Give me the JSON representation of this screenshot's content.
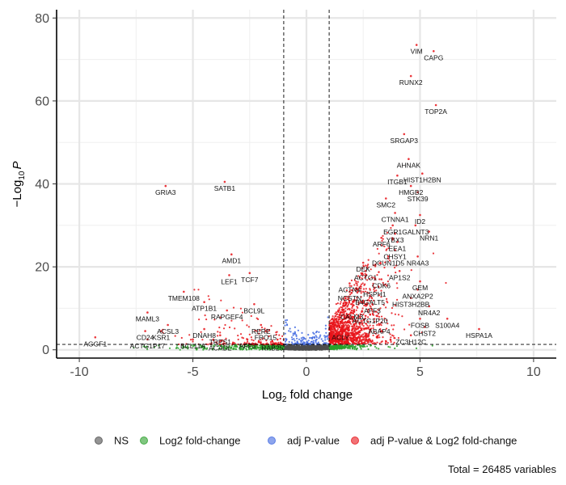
{
  "chart_data": {
    "type": "scatter",
    "xlabel_main": "Log",
    "xlabel_sub": "2",
    "xlabel_rest": " fold change",
    "ylabel_main": "−Log",
    "ylabel_sub": "10",
    "ylabel_var": "P",
    "xlim": [
      -11,
      11
    ],
    "ylim": [
      -2,
      82
    ],
    "x_ticks": [
      -10,
      -5,
      0,
      5,
      10
    ],
    "x_tick_labels": [
      "-10",
      "-5",
      "0",
      "5",
      "10"
    ],
    "y_ticks": [
      0,
      20,
      40,
      60,
      80
    ],
    "y_tick_labels": [
      "0",
      "20",
      "40",
      "60",
      "80"
    ],
    "grid": true,
    "fc_cutoff": 1,
    "p_cutoff": 1.3,
    "legend_position": "bottom",
    "colors": {
      "NS": "#4d4d4d",
      "fc": "#2ca02c",
      "p": "#4169e1",
      "both": "#e8141a"
    },
    "legend": [
      {
        "key": "NS",
        "label": "NS"
      },
      {
        "key": "fc",
        "label": "Log2 fold-change"
      },
      {
        "key": "p",
        "label": "adj P-value"
      },
      {
        "key": "both",
        "label": "adj P-value & Log2 fold-change"
      }
    ],
    "caption": "Total = 26485 variables",
    "labeled_points": [
      {
        "gene": "VIM",
        "x": 4.85,
        "y": 73.5
      },
      {
        "gene": "CAPG",
        "x": 5.6,
        "y": 72.0
      },
      {
        "gene": "RUNX2",
        "x": 4.6,
        "y": 66.0
      },
      {
        "gene": "TOP2A",
        "x": 5.7,
        "y": 59.0
      },
      {
        "gene": "SRGAP3",
        "x": 4.3,
        "y": 52.0
      },
      {
        "gene": "AHNAK",
        "x": 4.5,
        "y": 46.0
      },
      {
        "gene": "HIST1H2BN",
        "x": 5.1,
        "y": 42.5
      },
      {
        "gene": "ITGB1",
        "x": 4.0,
        "y": 42.0
      },
      {
        "gene": "HMGB2",
        "x": 4.6,
        "y": 39.5
      },
      {
        "gene": "STK39",
        "x": 4.9,
        "y": 38.0
      },
      {
        "gene": "SMC2",
        "x": 3.5,
        "y": 36.5
      },
      {
        "gene": "CTNNA1",
        "x": 3.9,
        "y": 33.0
      },
      {
        "gene": "ID2",
        "x": 5.0,
        "y": 32.5
      },
      {
        "gene": "EGR1",
        "x": 3.8,
        "y": 30.0
      },
      {
        "gene": "GALNT3",
        "x": 4.8,
        "y": 30.0
      },
      {
        "gene": "NRN1",
        "x": 5.4,
        "y": 28.5
      },
      {
        "gene": "YBX3",
        "x": 3.9,
        "y": 28.0
      },
      {
        "gene": "ARF6",
        "x": 3.3,
        "y": 27.0
      },
      {
        "gene": "EEA1",
        "x": 4.0,
        "y": 26.0
      },
      {
        "gene": "CHSY1",
        "x": 3.9,
        "y": 24.0
      },
      {
        "gene": "DCUN1D5",
        "x": 3.6,
        "y": 22.5
      },
      {
        "gene": "NR4A3",
        "x": 4.9,
        "y": 22.5
      },
      {
        "gene": "DEK",
        "x": 2.5,
        "y": 21.0
      },
      {
        "gene": "ACTG1",
        "x": 2.6,
        "y": 19.0
      },
      {
        "gene": "AP1S2",
        "x": 4.1,
        "y": 19.0
      },
      {
        "gene": "CDK6",
        "x": 3.3,
        "y": 17.0
      },
      {
        "gene": "GEM",
        "x": 5.0,
        "y": 16.5
      },
      {
        "gene": "ACTN4",
        "x": 1.9,
        "y": 16.0
      },
      {
        "gene": "HSPH1",
        "x": 3.0,
        "y": 15.0
      },
      {
        "gene": "ANXA2P2",
        "x": 4.9,
        "y": 14.5
      },
      {
        "gene": "NCSTN",
        "x": 1.9,
        "y": 14.0
      },
      {
        "gene": "B4GALT5",
        "x": 2.8,
        "y": 13.0
      },
      {
        "gene": "HIST3H2BB",
        "x": 4.6,
        "y": 12.5
      },
      {
        "gene": "AFF3",
        "x": 2.9,
        "y": 11.0
      },
      {
        "gene": "NR4A2",
        "x": 5.4,
        "y": 10.5
      },
      {
        "gene": "CALM3",
        "x": 2.0,
        "y": 9.5
      },
      {
        "gene": "ACTG1P20",
        "x": 2.8,
        "y": 8.5
      },
      {
        "gene": "FOSB",
        "x": 5.0,
        "y": 7.5
      },
      {
        "gene": "S100A4",
        "x": 6.2,
        "y": 7.5
      },
      {
        "gene": "ABAP4",
        "x": 3.2,
        "y": 6.0
      },
      {
        "gene": "CHST2",
        "x": 5.2,
        "y": 5.5
      },
      {
        "gene": "HSPA1A",
        "x": 7.6,
        "y": 5.0
      },
      {
        "gene": "ACLY",
        "x": 1.5,
        "y": 4.5
      },
      {
        "gene": "ZC3H12C",
        "x": 4.6,
        "y": 3.5
      },
      {
        "gene": "GRIA3",
        "x": -6.2,
        "y": 39.5
      },
      {
        "gene": "SATB1",
        "x": -3.6,
        "y": 40.5
      },
      {
        "gene": "AMD1",
        "x": -3.3,
        "y": 23.0
      },
      {
        "gene": "TCF7",
        "x": -2.5,
        "y": 18.5
      },
      {
        "gene": "LEF1",
        "x": -3.4,
        "y": 18.0
      },
      {
        "gene": "TMEM108",
        "x": -5.4,
        "y": 14.0
      },
      {
        "gene": "ATP1B1",
        "x": -4.5,
        "y": 11.5
      },
      {
        "gene": "BCL9L",
        "x": -2.3,
        "y": 11.0
      },
      {
        "gene": "MAML3",
        "x": -7.0,
        "y": 9.0
      },
      {
        "gene": "RAPGEF4",
        "x": -3.5,
        "y": 9.5
      },
      {
        "gene": "ACSL3",
        "x": -6.1,
        "y": 6.0
      },
      {
        "gene": "RERE",
        "x": -2.0,
        "y": 6.0
      },
      {
        "gene": "DNAH8",
        "x": -4.5,
        "y": 5.0
      },
      {
        "gene": "CD24",
        "x": -7.1,
        "y": 4.5
      },
      {
        "gene": "KSR1",
        "x": -6.4,
        "y": 4.5
      },
      {
        "gene": "AGGF1",
        "x": -9.3,
        "y": 3.0
      },
      {
        "gene": "ACTG1P17",
        "x": -7.0,
        "y": 2.5
      },
      {
        "gene": "BCL11A",
        "x": -5.0,
        "y": 2.5
      },
      {
        "gene": "ACADL",
        "x": -3.8,
        "y": 2.0
      },
      {
        "gene": "AFF3",
        "x": -2.6,
        "y": 2.5
      },
      {
        "gene": "RAB25",
        "x": -1.5,
        "y": 2.0
      },
      {
        "gene": "FRO15",
        "x": -1.8,
        "y": 4.5
      },
      {
        "gene": "TRPS1",
        "x": -3.8,
        "y": 3.5
      }
    ],
    "background_points": {
      "note": "procedurally drawn cloud; counts per class shown as visible density only",
      "counts": {
        "NS": 1800,
        "fc": 260,
        "p": 120,
        "both": 1400
      }
    }
  }
}
